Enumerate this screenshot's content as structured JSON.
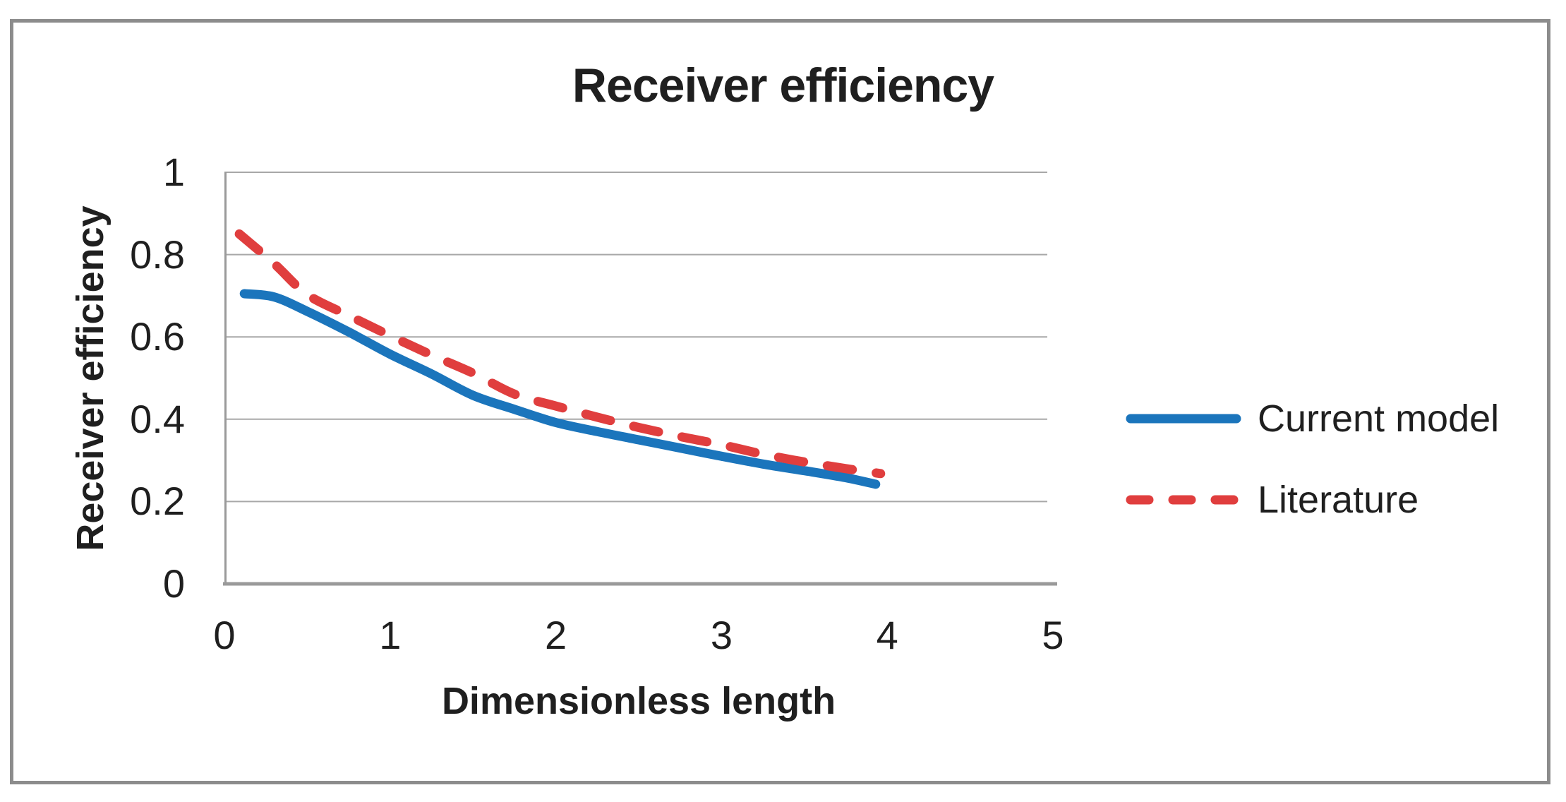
{
  "chart_data": {
    "type": "line",
    "title": "Receiver efficiency",
    "xlabel": "Dimensionless length",
    "ylabel": "Receiver efficiency",
    "xlim": [
      0,
      5
    ],
    "ylim": [
      0,
      1
    ],
    "xticks": {
      "values": [
        0,
        1,
        2,
        3,
        4,
        5
      ],
      "labels": [
        "0",
        "1",
        "2",
        "3",
        "4",
        "5"
      ]
    },
    "yticks": {
      "values": [
        0,
        0.2,
        0.4,
        0.6,
        0.8,
        1
      ],
      "labels": [
        "0",
        "0.2",
        "0.4",
        "0.6",
        "0.8",
        "1"
      ]
    },
    "grid": "horizontal-only",
    "legend_position": "right-middle",
    "series": [
      {
        "name": "Current model",
        "color": "#1B75BC",
        "line_style": "solid",
        "points": [
          [
            0.12,
            0.705
          ],
          [
            0.3,
            0.697
          ],
          [
            0.5,
            0.662
          ],
          [
            0.75,
            0.612
          ],
          [
            1.0,
            0.558
          ],
          [
            1.25,
            0.51
          ],
          [
            1.5,
            0.458
          ],
          [
            1.75,
            0.424
          ],
          [
            2.0,
            0.392
          ],
          [
            2.25,
            0.37
          ],
          [
            2.5,
            0.35
          ],
          [
            2.75,
            0.33
          ],
          [
            3.0,
            0.31
          ],
          [
            3.25,
            0.291
          ],
          [
            3.5,
            0.275
          ],
          [
            3.75,
            0.258
          ],
          [
            3.93,
            0.242
          ]
        ]
      },
      {
        "name": "Literature",
        "color": "#E03E3E",
        "line_style": "dashed",
        "points": [
          [
            0.09,
            0.85
          ],
          [
            0.3,
            0.778
          ],
          [
            0.5,
            0.703
          ],
          [
            0.75,
            0.652
          ],
          [
            1.0,
            0.603
          ],
          [
            1.25,
            0.556
          ],
          [
            1.5,
            0.512
          ],
          [
            1.75,
            0.461
          ],
          [
            2.0,
            0.432
          ],
          [
            2.25,
            0.405
          ],
          [
            2.5,
            0.38
          ],
          [
            2.75,
            0.358
          ],
          [
            3.0,
            0.338
          ],
          [
            3.25,
            0.315
          ],
          [
            3.5,
            0.296
          ],
          [
            3.75,
            0.28
          ],
          [
            3.96,
            0.268
          ]
        ]
      }
    ],
    "axis_color": "#9A9A9A",
    "gridline_color": "#A8A8A8",
    "text_color": "#1F1F1F",
    "frame_color": "#8C8C8C"
  }
}
